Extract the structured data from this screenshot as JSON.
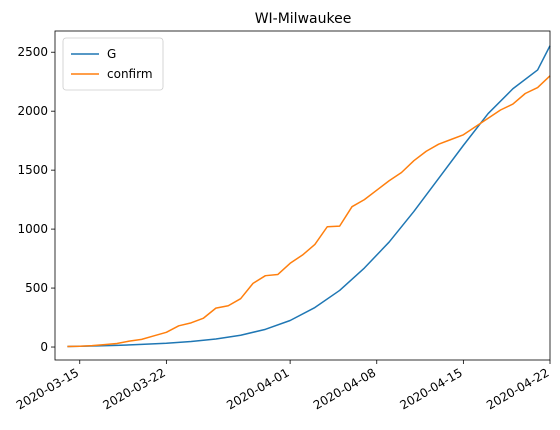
{
  "chart_data": {
    "type": "line",
    "title": "WI-Milwaukee",
    "xlabel": "",
    "ylabel": "",
    "x_axis_type": "date",
    "xlim": [
      "2020-03-13",
      "2020-04-22"
    ],
    "ylim": [
      -110,
      2680
    ],
    "x_ticks": [
      "2020-03-15",
      "2020-03-22",
      "2020-04-01",
      "2020-04-08",
      "2020-04-15",
      "2020-04-22"
    ],
    "y_ticks": [
      0,
      500,
      1000,
      1500,
      2000,
      2500
    ],
    "grid": false,
    "legend": {
      "placement": "top-left",
      "entries": [
        "G",
        "confirm"
      ]
    },
    "series": [
      {
        "name": "G",
        "color": "#1f77b4",
        "points": [
          [
            "2020-03-14",
            5
          ],
          [
            "2020-03-16",
            9
          ],
          [
            "2020-03-18",
            14
          ],
          [
            "2020-03-20",
            22
          ],
          [
            "2020-03-22",
            32
          ],
          [
            "2020-03-24",
            47
          ],
          [
            "2020-03-26",
            68
          ],
          [
            "2020-03-28",
            100
          ],
          [
            "2020-03-30",
            150
          ],
          [
            "2020-04-01",
            225
          ],
          [
            "2020-04-03",
            335
          ],
          [
            "2020-04-05",
            480
          ],
          [
            "2020-04-07",
            670
          ],
          [
            "2020-04-09",
            890
          ],
          [
            "2020-04-11",
            1150
          ],
          [
            "2020-04-13",
            1430
          ],
          [
            "2020-04-15",
            1710
          ],
          [
            "2020-04-17",
            1980
          ],
          [
            "2020-04-19",
            2190
          ],
          [
            "2020-04-21",
            2350
          ],
          [
            "2020-04-22",
            2555
          ]
        ]
      },
      {
        "name": "confirm",
        "color": "#ff7f0e",
        "points": [
          [
            "2020-03-14",
            5
          ],
          [
            "2020-03-15",
            7
          ],
          [
            "2020-03-16",
            12
          ],
          [
            "2020-03-17",
            20
          ],
          [
            "2020-03-18",
            30
          ],
          [
            "2020-03-19",
            50
          ],
          [
            "2020-03-20",
            65
          ],
          [
            "2020-03-21",
            95
          ],
          [
            "2020-03-22",
            125
          ],
          [
            "2020-03-23",
            180
          ],
          [
            "2020-03-24",
            205
          ],
          [
            "2020-03-25",
            245
          ],
          [
            "2020-03-26",
            330
          ],
          [
            "2020-03-27",
            350
          ],
          [
            "2020-03-28",
            410
          ],
          [
            "2020-03-29",
            540
          ],
          [
            "2020-03-30",
            605
          ],
          [
            "2020-03-31",
            615
          ],
          [
            "2020-04-01",
            710
          ],
          [
            "2020-04-02",
            780
          ],
          [
            "2020-04-03",
            870
          ],
          [
            "2020-04-04",
            1020
          ],
          [
            "2020-04-05",
            1025
          ],
          [
            "2020-04-06",
            1190
          ],
          [
            "2020-04-07",
            1250
          ],
          [
            "2020-04-08",
            1330
          ],
          [
            "2020-04-09",
            1410
          ],
          [
            "2020-04-10",
            1480
          ],
          [
            "2020-04-11",
            1580
          ],
          [
            "2020-04-12",
            1660
          ],
          [
            "2020-04-13",
            1720
          ],
          [
            "2020-04-14",
            1760
          ],
          [
            "2020-04-15",
            1800
          ],
          [
            "2020-04-16",
            1870
          ],
          [
            "2020-04-17",
            1940
          ],
          [
            "2020-04-18",
            2010
          ],
          [
            "2020-04-19",
            2060
          ],
          [
            "2020-04-20",
            2150
          ],
          [
            "2020-04-21",
            2200
          ],
          [
            "2020-04-22",
            2300
          ]
        ]
      }
    ]
  }
}
